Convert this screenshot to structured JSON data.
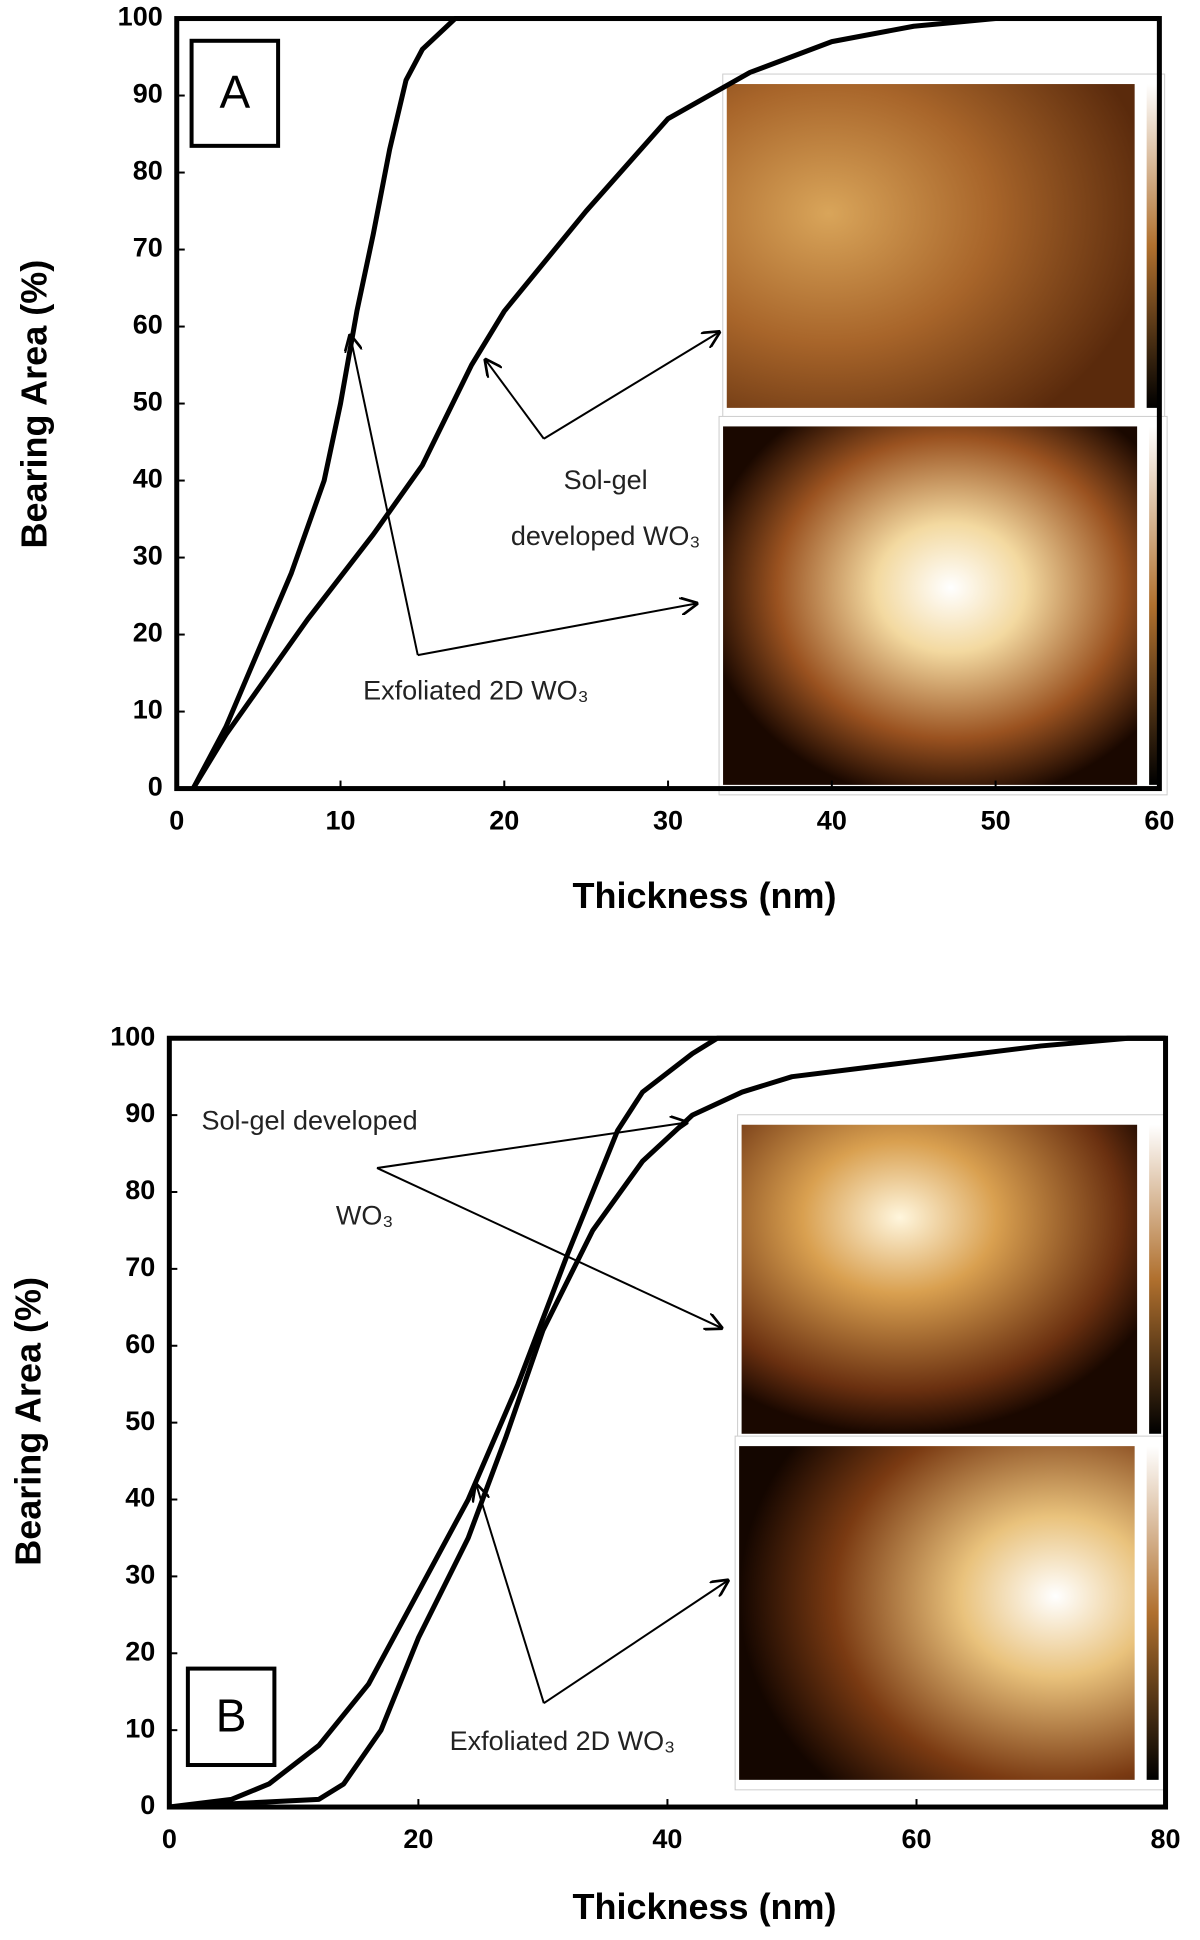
{
  "chart_data": [
    {
      "type": "line",
      "panel_label": "A",
      "x_label": "Thickness (nm)",
      "y_label": "Bearing Area (%)",
      "xlim": [
        0,
        60
      ],
      "xticks": [
        0,
        10,
        20,
        30,
        40,
        50,
        60
      ],
      "ylim": [
        0,
        100
      ],
      "yticks": [
        0,
        10,
        20,
        30,
        40,
        50,
        60,
        70,
        80,
        90,
        100
      ],
      "annotations": [
        "Sol-gel",
        "developed WO₃",
        "Exfoliated 2D WO₃"
      ],
      "series": [
        {
          "color": "#000000",
          "x": [
            1,
            3,
            5,
            7,
            9,
            10,
            11,
            12,
            13,
            14,
            15,
            16,
            17,
            60
          ],
          "values": [
            0,
            8,
            18,
            28,
            40,
            50,
            62,
            72,
            83,
            92,
            96,
            98,
            100,
            100
          ]
        },
        {
          "color": "#000000",
          "x": [
            1,
            3,
            5,
            8,
            12,
            15,
            18,
            20,
            25,
            30,
            35,
            40,
            45,
            50,
            60
          ],
          "values": [
            0,
            7,
            13,
            22,
            33,
            42,
            55,
            62,
            75,
            87,
            93,
            97,
            99,
            100,
            100
          ]
        }
      ]
    },
    {
      "type": "line",
      "panel_label": "B",
      "x_label": "Thickness (nm)",
      "y_label": "Bearing Area (%)",
      "xlim": [
        0,
        80
      ],
      "xticks": [
        0,
        20,
        40,
        60,
        80
      ],
      "ylim": [
        0,
        100
      ],
      "yticks": [
        0,
        10,
        20,
        30,
        40,
        50,
        60,
        70,
        80,
        90,
        100
      ],
      "annotations": [
        "Sol-gel developed",
        "WO₃",
        "Exfoliated 2D WO₃"
      ],
      "series": [
        {
          "color": "#000000",
          "x": [
            0,
            5,
            8,
            12,
            16,
            20,
            24,
            28,
            32,
            36,
            38,
            42,
            44,
            80
          ],
          "values": [
            0,
            1,
            3,
            8,
            16,
            28,
            40,
            55,
            72,
            88,
            93,
            98,
            100,
            100
          ]
        },
        {
          "color": "#000000",
          "x": [
            0,
            12,
            14,
            17,
            20,
            24,
            27,
            30,
            34,
            38,
            42,
            46,
            50,
            60,
            70,
            77,
            80
          ],
          "values": [
            0,
            1,
            3,
            10,
            22,
            35,
            48,
            62,
            75,
            84,
            90,
            93,
            95,
            97,
            99,
            100,
            100
          ]
        }
      ]
    }
  ]
}
